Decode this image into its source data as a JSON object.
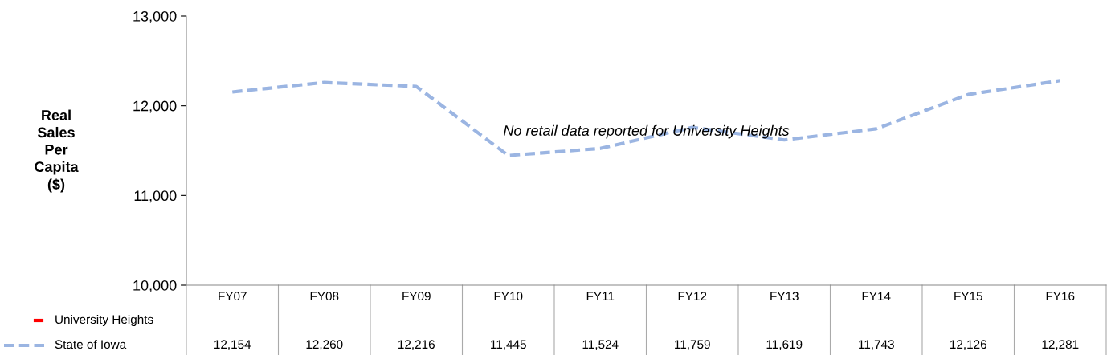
{
  "chart_data": {
    "type": "line",
    "ylabel": "Real Sales Per Capita ($)",
    "categories": [
      "FY07",
      "FY08",
      "FY09",
      "FY10",
      "FY11",
      "FY12",
      "FY13",
      "FY14",
      "FY15",
      "FY16"
    ],
    "series": [
      {
        "name": "University Heights",
        "color": "#ff0000",
        "values": [
          null,
          null,
          null,
          null,
          null,
          null,
          null,
          null,
          null,
          null
        ]
      },
      {
        "name": "State of Iowa",
        "color": "#9bb5e2",
        "line_style": "dashed",
        "values": [
          12154,
          12260,
          12216,
          11445,
          11524,
          11759,
          11619,
          11743,
          12126,
          12281
        ],
        "value_labels": [
          "12,154",
          "12,260",
          "12,216",
          "11,445",
          "11,524",
          "11,759",
          "11,619",
          "11,743",
          "12,126",
          "12,281"
        ]
      }
    ],
    "ylim": [
      10000,
      13000
    ],
    "yticks": [
      {
        "value": 10000,
        "label": "10,000"
      },
      {
        "value": 11000,
        "label": "11,000"
      },
      {
        "value": 12000,
        "label": "12,000"
      },
      {
        "value": 13000,
        "label": "13,000"
      }
    ],
    "annotations": [
      "No retail data reported for University Heights"
    ],
    "legend": "bottom",
    "grid": false,
    "marker": "none"
  }
}
